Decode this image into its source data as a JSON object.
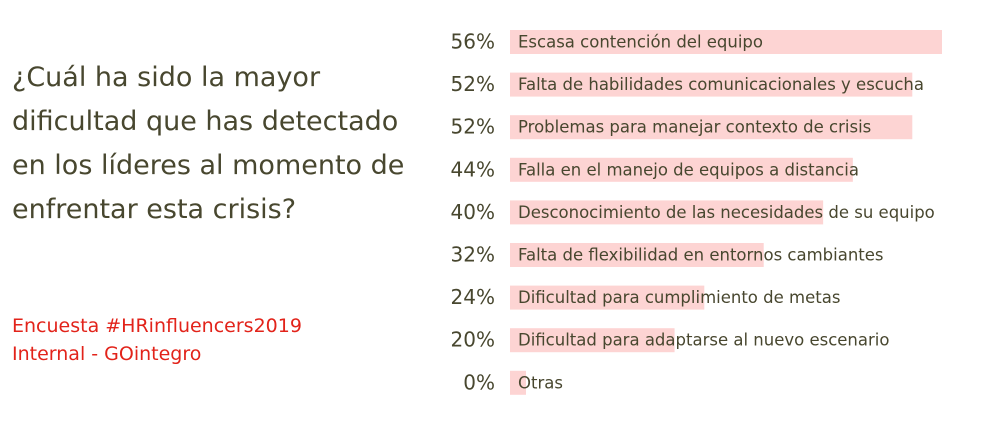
{
  "chart_data": {
    "type": "bar",
    "orientation": "horizontal",
    "title": "¿Cuál ha sido la mayor dificultad que has detectado en los líderes al momento de enfrentar esta crisis?",
    "source": [
      "Encuesta #HRinfluencers2019",
      "Internal - GOintegro"
    ],
    "categories": [
      "Escasa contención del equipo",
      "Falta de habilidades comunicacionales y escucha",
      "Problemas para manejar contexto de crisis",
      "Falla en el manejo de equipos a distancia",
      "Desconocimiento de las necesidades de su equipo",
      "Falta de flexibilidad en entornos cambiantes",
      "Dificultad para cumplimiento de metas",
      "Dificultad para adaptarse al nuevo escenario",
      "Otras"
    ],
    "values": [
      56,
      52,
      52,
      44,
      40,
      32,
      24,
      20,
      0
    ],
    "value_labels": [
      "56%",
      "52%",
      "52%",
      "44%",
      "40%",
      "32%",
      "24%",
      "20%",
      "0%"
    ],
    "color": "#fdd4d3"
  }
}
